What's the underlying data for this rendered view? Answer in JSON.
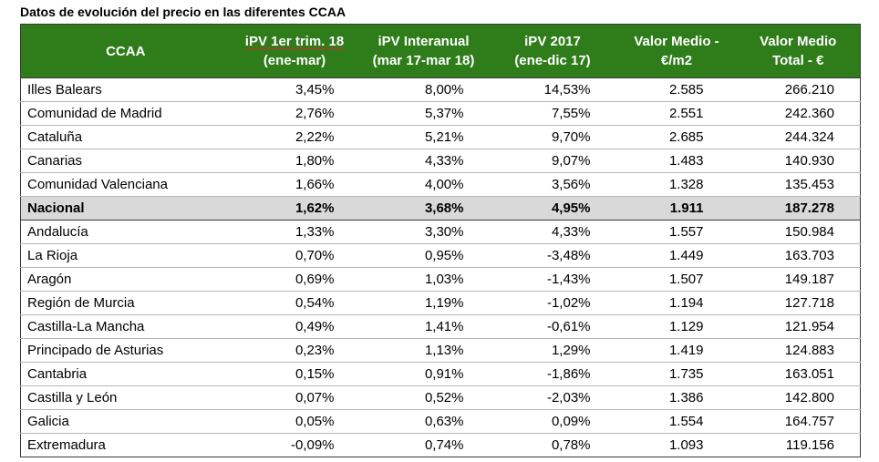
{
  "title": "Datos de evolución del precio en las diferentes CCAA",
  "header": {
    "region": [
      "CCAA"
    ],
    "ipv_q1": [
      "iPV 1er trim. 18",
      "(ene-mar)"
    ],
    "ipv_yoy": [
      "iPV Interanual",
      "(mar 17-mar 18)"
    ],
    "ipv_2017": [
      "iPV 2017",
      "(ene-dic 17)"
    ],
    "value_m2": [
      "Valor Medio -",
      "€/m2"
    ],
    "value_total": [
      "Valor Medio",
      "Total - €"
    ]
  },
  "rows": [
    {
      "region": "Illes Balears",
      "ipv_q1": "3,45%",
      "ipv_yoy": "8,00%",
      "ipv_2017": "14,53%",
      "value_m2": "2.585",
      "value_total": "266.210"
    },
    {
      "region": "Comunidad de Madrid",
      "ipv_q1": "2,76%",
      "ipv_yoy": "5,37%",
      "ipv_2017": "7,55%",
      "value_m2": "2.551",
      "value_total": "242.360"
    },
    {
      "region": "Cataluña",
      "ipv_q1": "2,22%",
      "ipv_yoy": "5,21%",
      "ipv_2017": "9,70%",
      "value_m2": "2.685",
      "value_total": "244.324"
    },
    {
      "region": "Canarias",
      "ipv_q1": "1,80%",
      "ipv_yoy": "4,33%",
      "ipv_2017": "9,07%",
      "value_m2": "1.483",
      "value_total": "140.930"
    },
    {
      "region": "Comunidad Valenciana",
      "ipv_q1": "1,66%",
      "ipv_yoy": "4,00%",
      "ipv_2017": "3,56%",
      "value_m2": "1.328",
      "value_total": "135.453"
    },
    {
      "region": "Nacional",
      "ipv_q1": "1,62%",
      "ipv_yoy": "3,68%",
      "ipv_2017": "4,95%",
      "value_m2": "1.911",
      "value_total": "187.278",
      "highlight": true
    },
    {
      "region": "Andalucía",
      "ipv_q1": "1,33%",
      "ipv_yoy": "3,30%",
      "ipv_2017": "4,33%",
      "value_m2": "1.557",
      "value_total": "150.984"
    },
    {
      "region": "La Rioja",
      "ipv_q1": "0,70%",
      "ipv_yoy": "0,95%",
      "ipv_2017": "-3,48%",
      "value_m2": "1.449",
      "value_total": "163.703"
    },
    {
      "region": "Aragón",
      "ipv_q1": "0,69%",
      "ipv_yoy": "1,03%",
      "ipv_2017": "-1,43%",
      "value_m2": "1.507",
      "value_total": "149.187"
    },
    {
      "region": "Región de Murcia",
      "ipv_q1": "0,54%",
      "ipv_yoy": "1,19%",
      "ipv_2017": "-1,02%",
      "value_m2": "1.194",
      "value_total": "127.718"
    },
    {
      "region": "Castilla-La Mancha",
      "ipv_q1": "0,49%",
      "ipv_yoy": "1,41%",
      "ipv_2017": "-0,61%",
      "value_m2": "1.129",
      "value_total": "121.954"
    },
    {
      "region": "Principado de Asturias",
      "ipv_q1": "0,23%",
      "ipv_yoy": "1,13%",
      "ipv_2017": "1,29%",
      "value_m2": "1.419",
      "value_total": "124.883"
    },
    {
      "region": "Cantabria",
      "ipv_q1": "0,15%",
      "ipv_yoy": "0,91%",
      "ipv_2017": "-1,86%",
      "value_m2": "1.735",
      "value_total": "163.051"
    },
    {
      "region": "Castilla y León",
      "ipv_q1": "0,07%",
      "ipv_yoy": "0,52%",
      "ipv_2017": "-2,03%",
      "value_m2": "1.386",
      "value_total": "142.800"
    },
    {
      "region": "Galicia",
      "ipv_q1": "0,05%",
      "ipv_yoy": "0,63%",
      "ipv_2017": "0,09%",
      "value_m2": "1.554",
      "value_total": "164.757"
    },
    {
      "region": "Extremadura",
      "ipv_q1": "-0,09%",
      "ipv_yoy": "0,74%",
      "ipv_2017": "0,78%",
      "value_m2": "1.093",
      "value_total": "119.156"
    }
  ],
  "colors": {
    "header_bg": "#2e7d1a",
    "header_text": "#ffffff",
    "highlight_row_bg": "#d9d9d9",
    "spellcheck_underline": "#d22a2a"
  }
}
